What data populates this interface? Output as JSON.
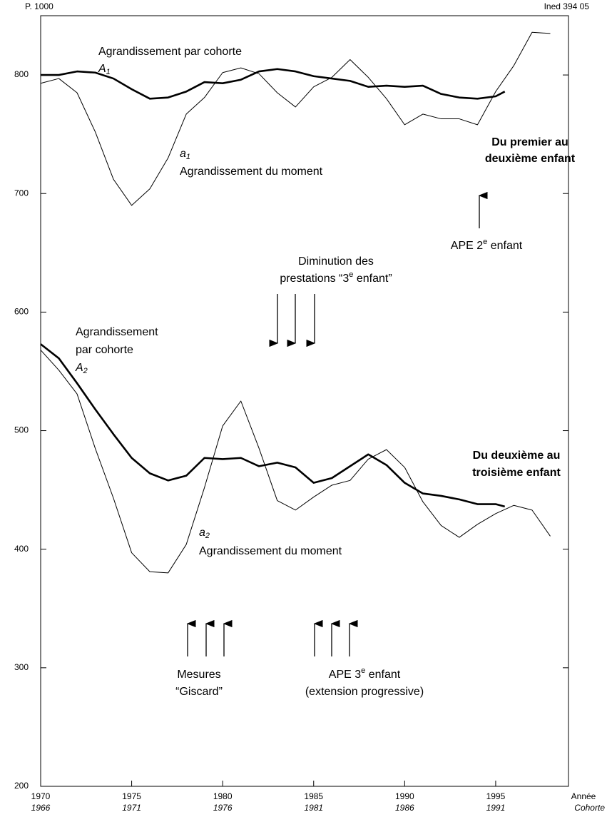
{
  "chart_data": {
    "type": "line",
    "header_left": "P. 1000",
    "header_right": "Ined 394 05",
    "xlim": [
      1970,
      1999
    ],
    "ylim": [
      200,
      850
    ],
    "yticks": [
      200,
      300,
      400,
      500,
      600,
      700,
      800
    ],
    "xticks": [
      1970,
      1975,
      1980,
      1985,
      1990,
      1995
    ],
    "cohort_labels": [
      "1966",
      "1971",
      "1976",
      "1981",
      "1986",
      "1991"
    ],
    "x_axis_label": "Année",
    "cohort_axis_label": "Cohorte",
    "series": [
      {
        "color": "#000000",
        "width": 1,
        "x": [
          1970,
          1971,
          1972,
          1973,
          1974,
          1975,
          1976,
          1977,
          1978,
          1979,
          1980,
          1981,
          1982,
          1983,
          1984,
          1985,
          1986,
          1987,
          1988,
          1989,
          1990,
          1991,
          1992,
          1993,
          1994,
          1995,
          1996,
          1997,
          1998
        ],
        "values": [
          793,
          797,
          785,
          752,
          712,
          690,
          704,
          730,
          767,
          781,
          802,
          806,
          801,
          785,
          773,
          790,
          798,
          813,
          798,
          780,
          758,
          767,
          763,
          763,
          758,
          786,
          808,
          836,
          835
        ]
      },
      {
        "color": "#000000",
        "width": 2.6,
        "x": [
          1970,
          1971,
          1972,
          1973,
          1974,
          1975,
          1976,
          1977,
          1978,
          1979,
          1980,
          1981,
          1982,
          1983,
          1984,
          1985,
          1986,
          1987,
          1988,
          1989,
          1990,
          1991,
          1992,
          1993,
          1994,
          1995,
          1995.5
        ],
        "values": [
          800,
          800,
          803,
          802,
          797,
          788,
          780,
          781,
          786,
          794,
          793,
          796,
          803,
          805,
          803,
          799,
          797,
          795,
          790,
          791,
          790,
          791,
          784,
          781,
          780,
          782,
          786
        ]
      },
      {
        "color": "#000000",
        "width": 2.6,
        "x": [
          1970,
          1971,
          1972,
          1973,
          1974,
          1975,
          1976,
          1977,
          1978,
          1979,
          1980,
          1981,
          1982,
          1983,
          1984,
          1985,
          1986,
          1987,
          1988,
          1989,
          1990,
          1991,
          1992,
          1993,
          1994,
          1995,
          1995.5
        ],
        "values": [
          573,
          561,
          540,
          518,
          497,
          477,
          464,
          458,
          462,
          477,
          476,
          477,
          470,
          473,
          469,
          456,
          460,
          470,
          480,
          471,
          456,
          447,
          445,
          442,
          438,
          438,
          436
        ]
      },
      {
        "color": "#000000",
        "width": 1,
        "x": [
          1970,
          1971,
          1972,
          1973,
          1974,
          1975,
          1976,
          1977,
          1978,
          1979,
          1980,
          1981,
          1982,
          1983,
          1984,
          1985,
          1986,
          1987,
          1988,
          1989,
          1990,
          1991,
          1992,
          1993,
          1994,
          1995,
          1996,
          1997,
          1998
        ],
        "values": [
          568,
          551,
          531,
          485,
          443,
          397,
          381,
          380,
          404,
          452,
          504,
          525,
          485,
          441,
          433,
          444,
          454,
          458,
          476,
          484,
          469,
          440,
          420,
          410,
          421,
          430,
          437,
          433,
          411
        ]
      }
    ],
    "annotations": {
      "A1_text": "Agrandissement par cohorte",
      "A1_letter": "A",
      "A1_sub": "1",
      "a1_letter": "a",
      "a1_sub": "1",
      "a1_text": "Agrandissement du moment",
      "first_line1": "Du premier au",
      "first_line2": "deuxième enfant",
      "ape2_a": "APE 2",
      "ape2_sup": "e",
      "ape2_b": " enfant",
      "dim_line1": "Diminution des",
      "dim_line2a": "prestations “3",
      "dim_line2sup": "e",
      "dim_line2b": " enfant”",
      "A2_line1": "Agrandissement",
      "A2_line2": "par cohorte",
      "A2_letter": "A",
      "A2_sub": "2",
      "second_line1": "Du deuxième au",
      "second_line2": "troisième enfant",
      "a2_letter": "a",
      "a2_sub": "2",
      "a2_text": "Agrandissement du moment",
      "mes_line1": "Mesures",
      "mes_line2": "“Giscard”",
      "ape3_a": "APE 3",
      "ape3_sup": "e",
      "ape3_b": " enfant",
      "ape3_line2": "(extension progressive)"
    }
  }
}
